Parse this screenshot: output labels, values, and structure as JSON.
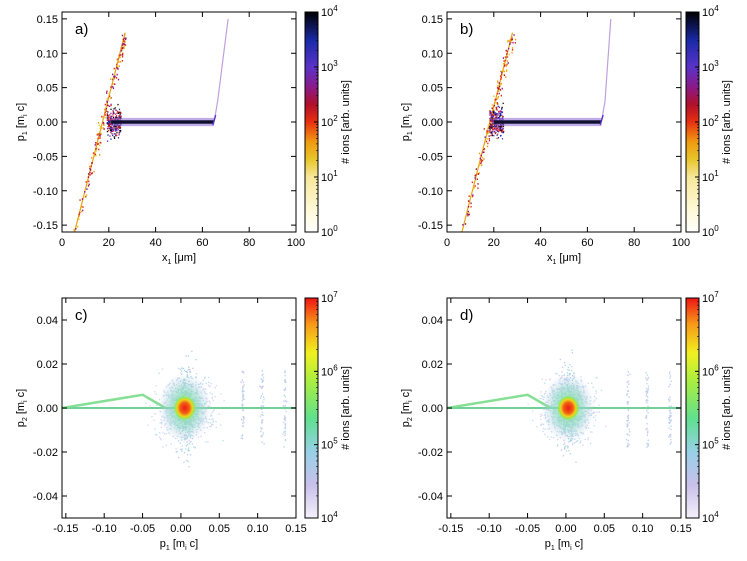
{
  "chart_data": [
    {
      "id": "a",
      "type": "heatmap",
      "panel_label": "a)",
      "xlabel": {
        "main": "x",
        "sub": "1",
        "unit": " [μm]"
      },
      "ylabel": {
        "main": "p",
        "sub": "1",
        "unit1": " [m",
        "sub2": "i",
        "unit2": " c]"
      },
      "xlim": [
        0,
        100
      ],
      "ylim": [
        -0.16,
        0.16
      ],
      "xticks": [
        0,
        20,
        40,
        60,
        80,
        100
      ],
      "xtick_labels": [
        "0",
        "20",
        "40",
        "60",
        "80",
        "100"
      ],
      "yticks": [
        -0.15,
        -0.1,
        -0.05,
        0,
        0.05,
        0.1,
        0.15
      ],
      "ytick_labels": [
        "-0.15",
        "-0.10",
        "-0.05",
        "0.00",
        "0.05",
        "0.10",
        "0.15"
      ],
      "colorbar": {
        "label": "# ions [arb. units]",
        "scale": "log",
        "min_exp": 0,
        "max_exp": 4,
        "tick_labels": [
          "10",
          "10",
          "10",
          "10",
          "10"
        ],
        "tick_exps": [
          "0",
          "1",
          "2",
          "3",
          "4"
        ],
        "palette": "rainbow"
      },
      "features": {
        "plateau_x": [
          21,
          65
        ],
        "left_branch_x": [
          5,
          27
        ],
        "right_branch_x": [
          65,
          71
        ]
      }
    },
    {
      "id": "b",
      "type": "heatmap",
      "panel_label": "b)",
      "xlabel": {
        "main": "x",
        "sub": "1",
        "unit": " [μm]"
      },
      "ylabel": {
        "main": "p",
        "sub": "1",
        "unit1": " [m",
        "sub2": "i",
        "unit2": " c]"
      },
      "xlim": [
        0,
        100
      ],
      "ylim": [
        -0.16,
        0.16
      ],
      "xticks": [
        0,
        20,
        40,
        60,
        80,
        100
      ],
      "xtick_labels": [
        "0",
        "20",
        "40",
        "60",
        "80",
        "100"
      ],
      "yticks": [
        -0.15,
        -0.1,
        -0.05,
        0,
        0.05,
        0.1,
        0.15
      ],
      "ytick_labels": [
        "-0.15",
        "-0.10",
        "-0.05",
        "0.00",
        "0.05",
        "0.10",
        "0.15"
      ],
      "colorbar": {
        "label": "# ions [arb. units]",
        "scale": "log",
        "min_exp": 0,
        "max_exp": 4,
        "tick_labels": [
          "10",
          "10",
          "10",
          "10",
          "10"
        ],
        "tick_exps": [
          "0",
          "1",
          "2",
          "3",
          "4"
        ],
        "palette": "rainbow"
      },
      "features": {
        "plateau_x": [
          20,
          66
        ],
        "left_branch_x": [
          6,
          28
        ],
        "right_branch_x": [
          66,
          70
        ]
      }
    },
    {
      "id": "c",
      "type": "heatmap",
      "panel_label": "c)",
      "xlabel": {
        "main": "p",
        "sub": "1",
        "unit1": " [m",
        "sub2": "i",
        "unit2": " c]"
      },
      "ylabel": {
        "main": "p",
        "sub": "2",
        "unit1": " [m",
        "sub2": "i",
        "unit2": " c]"
      },
      "xlim": [
        -0.155,
        0.15
      ],
      "ylim": [
        -0.05,
        0.05
      ],
      "xticks": [
        -0.15,
        -0.1,
        -0.05,
        0,
        0.05,
        0.1,
        0.15
      ],
      "xtick_labels": [
        "-0.15",
        "-0.10",
        "-0.05",
        "0.00",
        "0.05",
        "0.10",
        "0.15"
      ],
      "yticks": [
        -0.04,
        -0.02,
        0,
        0.02,
        0.04
      ],
      "ytick_labels": [
        "-0.04",
        "-0.02",
        "0.00",
        "0.02",
        "0.04"
      ],
      "colorbar": {
        "label": "# ions [arb. units]",
        "scale": "log",
        "min_exp": 4,
        "max_exp": 7,
        "tick_labels": [
          "10",
          "10",
          "10",
          "10"
        ],
        "tick_exps": [
          "4",
          "5",
          "6",
          "7"
        ],
        "palette": "spectral"
      },
      "features": {
        "core": [
          0.005,
          0.0
        ],
        "line_p2": 0.0
      }
    },
    {
      "id": "d",
      "type": "heatmap",
      "panel_label": "d)",
      "xlabel": {
        "main": "p",
        "sub": "1",
        "unit1": " [m",
        "sub2": "i",
        "unit2": " c]"
      },
      "ylabel": {
        "main": "p",
        "sub": "2",
        "unit1": " [m",
        "sub2": "i",
        "unit2": " c]"
      },
      "xlim": [
        -0.155,
        0.15
      ],
      "ylim": [
        -0.05,
        0.05
      ],
      "xticks": [
        -0.15,
        -0.1,
        -0.05,
        0,
        0.05,
        0.1,
        0.15
      ],
      "xtick_labels": [
        "-0.15",
        "-0.10",
        "-0.05",
        "0.00",
        "0.05",
        "0.10",
        "0.15"
      ],
      "yticks": [
        -0.04,
        -0.02,
        0,
        0.02,
        0.04
      ],
      "ytick_labels": [
        "-0.04",
        "-0.02",
        "0.00",
        "0.02",
        "0.04"
      ],
      "colorbar": {
        "label": "# ions [arb. units]",
        "scale": "log",
        "min_exp": 4,
        "max_exp": 7,
        "tick_labels": [
          "10",
          "10",
          "10",
          "10"
        ],
        "tick_exps": [
          "4",
          "5",
          "6",
          "7"
        ],
        "palette": "spectral"
      },
      "features": {
        "core": [
          0.003,
          0.0
        ],
        "line_p2": 0.0
      }
    }
  ]
}
